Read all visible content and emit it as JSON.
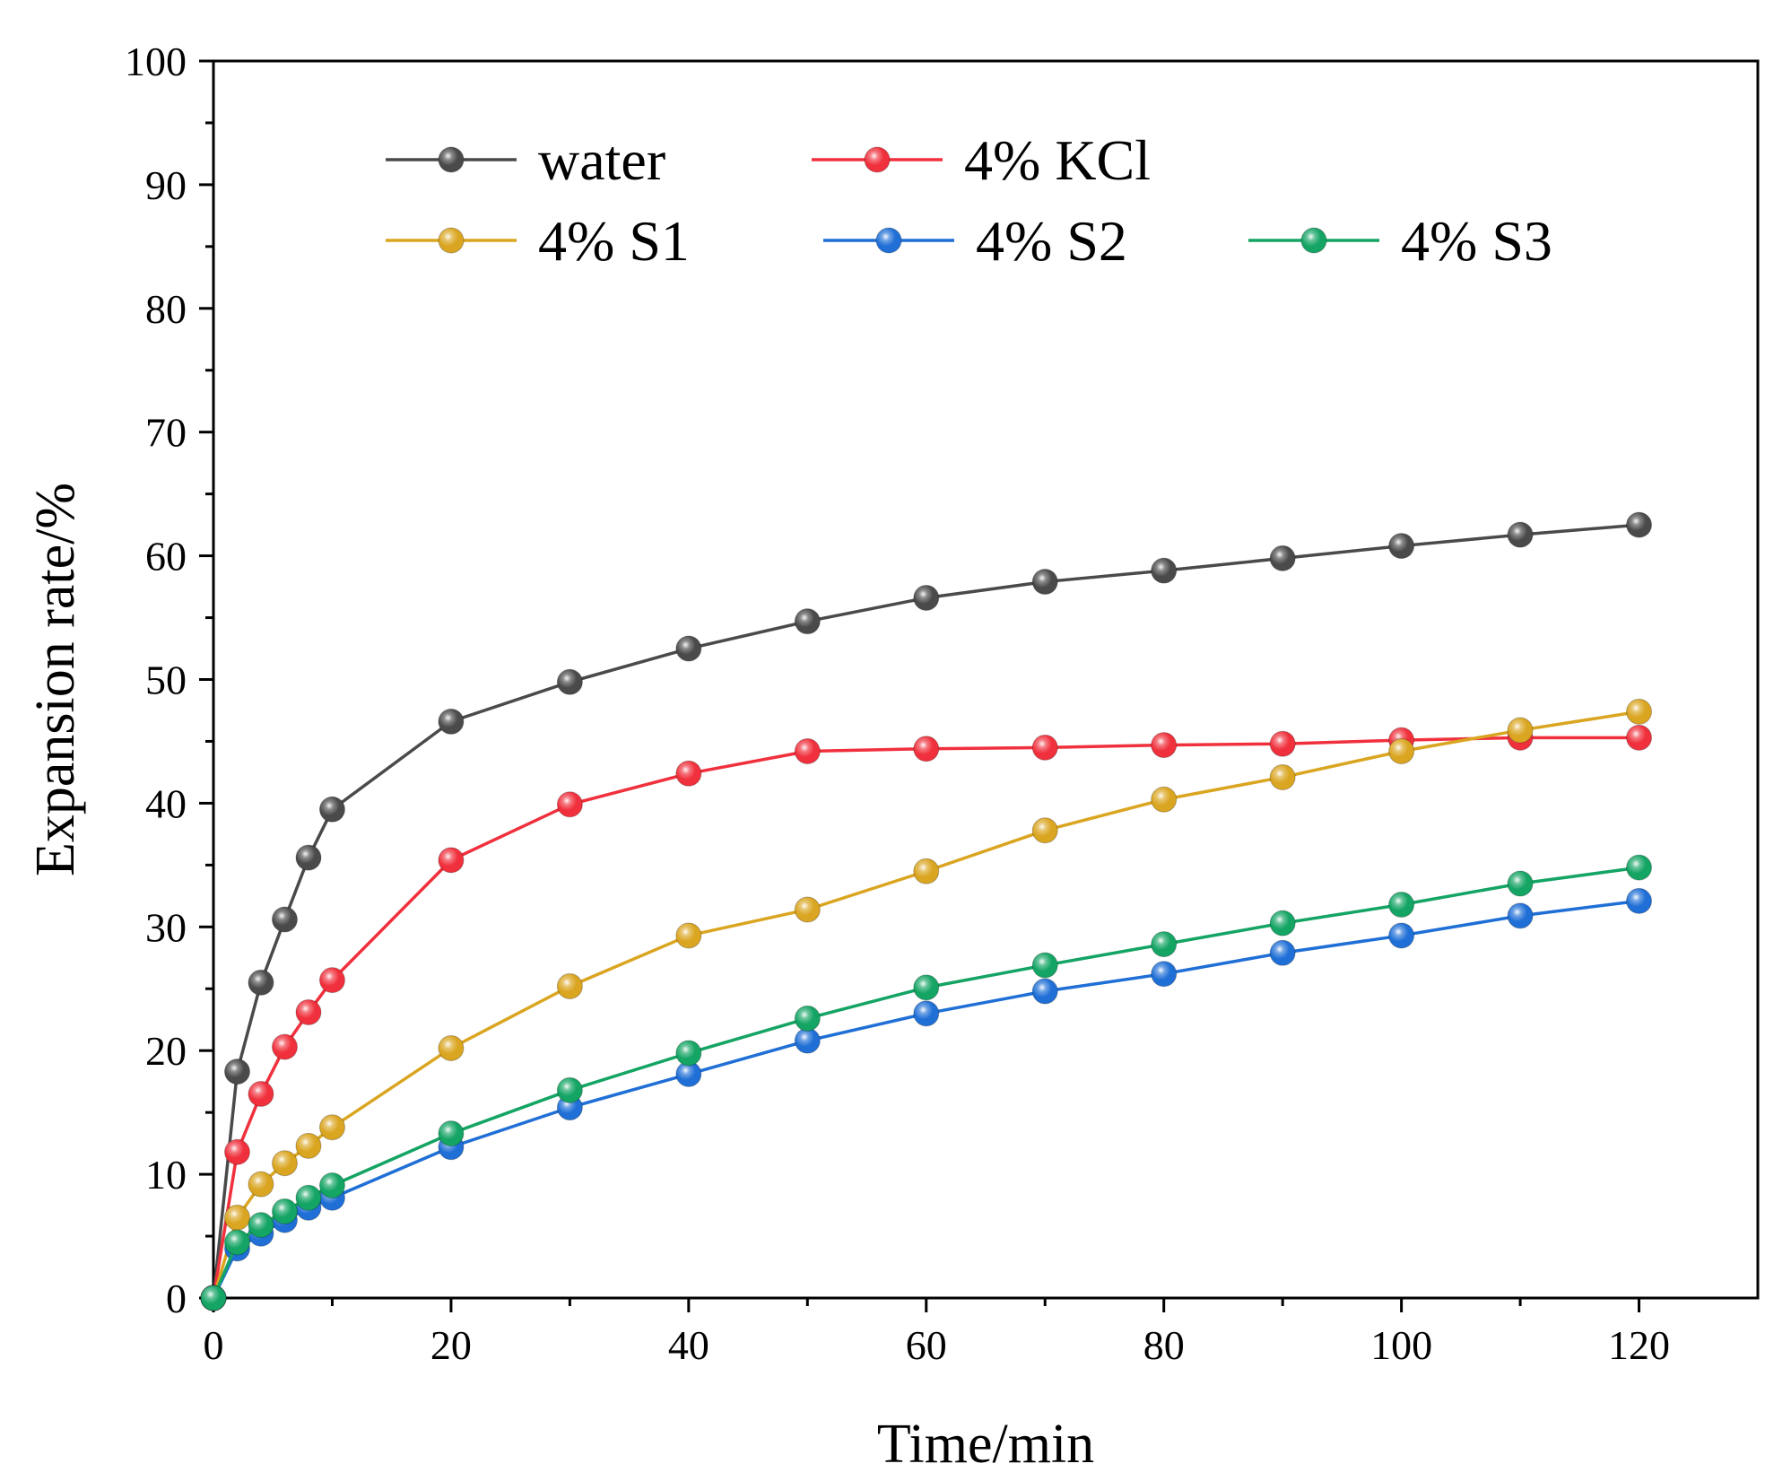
{
  "chart_data": {
    "type": "line",
    "title": "",
    "xlabel": "Time/min",
    "ylabel": "Expansion rate/%",
    "xlim": [
      0,
      130
    ],
    "ylim": [
      0,
      100
    ],
    "xticks": [
      0,
      20,
      40,
      60,
      80,
      100,
      120
    ],
    "yticks": [
      0,
      10,
      20,
      30,
      40,
      50,
      60,
      70,
      80,
      90,
      100
    ],
    "grid": false,
    "legend_position": "top",
    "x": [
      0,
      2,
      4,
      6,
      8,
      10,
      20,
      30,
      40,
      50,
      60,
      70,
      80,
      90,
      100,
      110,
      120
    ],
    "series": [
      {
        "name": "water",
        "color": "#4a4a4a",
        "values": [
          0,
          18.3,
          25.5,
          30.6,
          35.6,
          39.5,
          46.6,
          49.8,
          52.5,
          54.7,
          56.6,
          57.9,
          58.8,
          59.8,
          60.8,
          61.7,
          62.5
        ]
      },
      {
        "name": "4% KCl",
        "color": "#f0303c",
        "values": [
          0,
          11.8,
          16.5,
          20.3,
          23.1,
          25.7,
          35.4,
          39.9,
          42.4,
          44.2,
          44.4,
          44.5,
          44.7,
          44.8,
          45.1,
          45.3,
          45.3
        ]
      },
      {
        "name": "4% S1",
        "color": "#daa520",
        "values": [
          0,
          6.5,
          9.2,
          10.9,
          12.3,
          13.8,
          20.2,
          25.2,
          29.3,
          31.4,
          34.5,
          37.8,
          40.3,
          42.1,
          44.2,
          45.9,
          47.4
        ]
      },
      {
        "name": "4% S2",
        "color": "#1f6fd6",
        "values": [
          0,
          4.0,
          5.2,
          6.3,
          7.3,
          8.1,
          12.2,
          15.4,
          18.1,
          20.8,
          23.0,
          24.8,
          26.2,
          27.9,
          29.3,
          30.9,
          32.1
        ]
      },
      {
        "name": "4% S3",
        "color": "#14a464",
        "values": [
          0,
          4.5,
          5.9,
          7.0,
          8.1,
          9.1,
          13.3,
          16.8,
          19.8,
          22.6,
          25.1,
          26.9,
          28.6,
          30.3,
          31.8,
          33.5,
          34.8
        ]
      }
    ]
  }
}
